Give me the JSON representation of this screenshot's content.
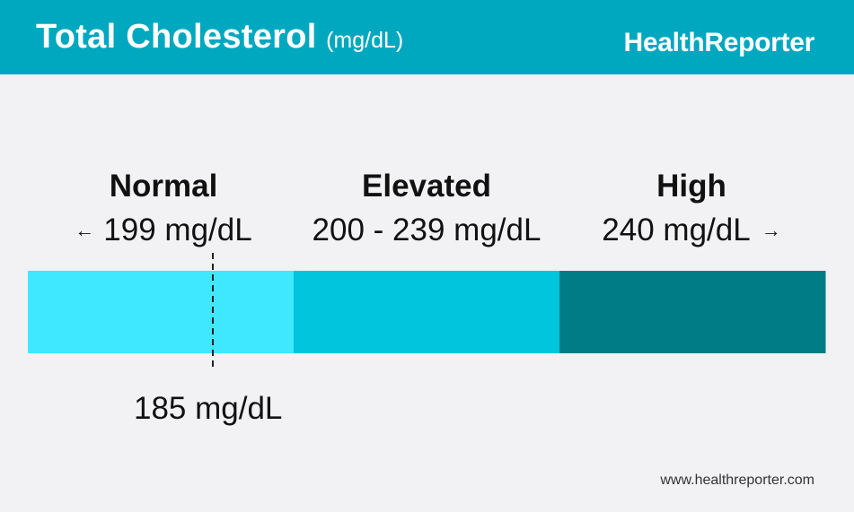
{
  "header": {
    "title": "Total Cholesterol",
    "unit": "(mg/dL)",
    "brand": "HealthReporter"
  },
  "categories": [
    {
      "label": "Normal",
      "range": "199 mg/dL",
      "arrow": "left"
    },
    {
      "label": "Elevated",
      "range": "200 - 239 mg/dL",
      "arrow": ""
    },
    {
      "label": "High",
      "range": "240 mg/dL",
      "arrow": "right"
    }
  ],
  "chart_data": {
    "type": "bar",
    "orientation": "horizontal-range",
    "segments": [
      {
        "label": "Normal",
        "range": "199 mg/dL",
        "color": "#40e8ff"
      },
      {
        "label": "Elevated",
        "range": "200 - 239 mg/dL",
        "color": "#00c5dc"
      },
      {
        "label": "High",
        "range": "240 mg/dL",
        "color": "#007c87"
      }
    ],
    "marker": {
      "value": 185,
      "label": "185 mg/dL"
    }
  },
  "footer": {
    "url": "www.healthreporter.com"
  }
}
